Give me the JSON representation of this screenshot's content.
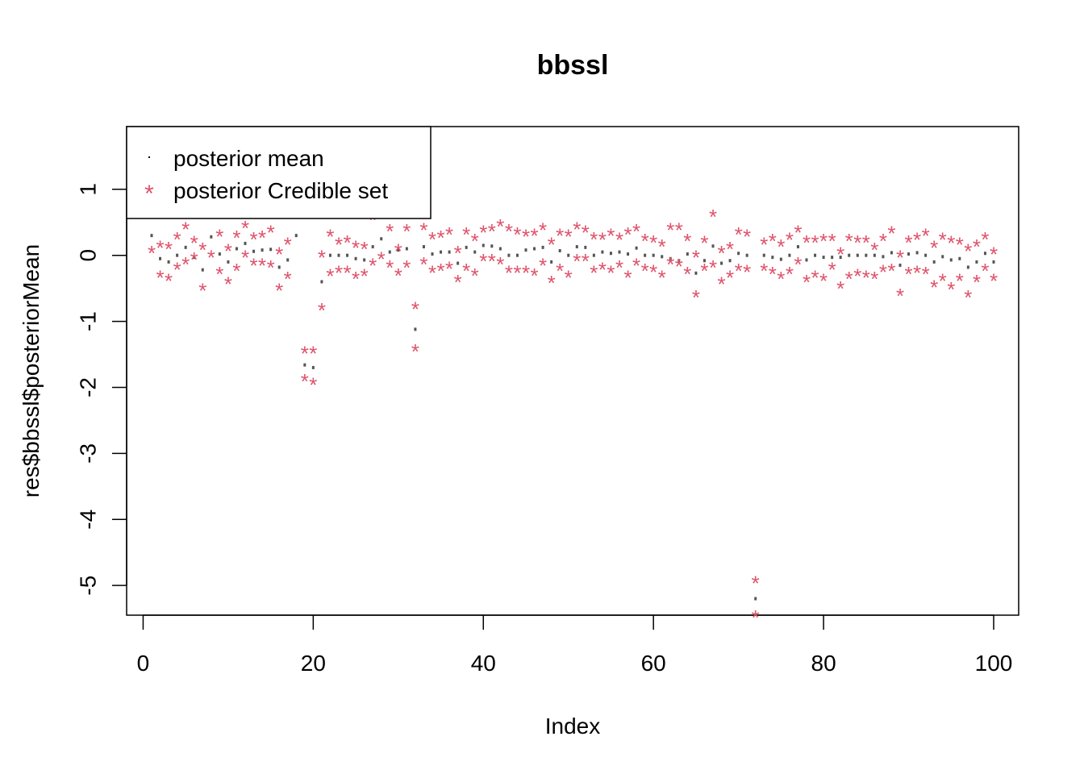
{
  "chart_data": {
    "type": "scatter",
    "title": "bbssl",
    "xlabel": "Index",
    "ylabel": "res$bbssl$posteriorMean",
    "xlim": [
      1,
      100
    ],
    "ylim": [
      -5.45,
      1.95
    ],
    "x_ticks": [
      0,
      20,
      40,
      60,
      80,
      100
    ],
    "y_ticks": [
      -5,
      -4,
      -3,
      -2,
      -1,
      0,
      1
    ],
    "legend_position": "top-left",
    "grid": false,
    "colors": {
      "mean": "#555555",
      "credible": "#DF536B",
      "axis": "#000000"
    },
    "legend": [
      {
        "label": "posterior mean",
        "marker": "dot",
        "color": "#000000"
      },
      {
        "label": "posterior Credible set",
        "marker": "star",
        "color": "#DF536B"
      }
    ],
    "series": [
      {
        "name": "posterior mean",
        "marker": "dot",
        "x": [
          1,
          2,
          3,
          4,
          5,
          6,
          7,
          8,
          9,
          10,
          11,
          12,
          13,
          14,
          15,
          16,
          17,
          18,
          19,
          20,
          21,
          22,
          23,
          24,
          25,
          26,
          27,
          28,
          29,
          30,
          31,
          32,
          33,
          34,
          35,
          36,
          37,
          38,
          39,
          40,
          41,
          42,
          43,
          44,
          45,
          46,
          47,
          48,
          49,
          50,
          51,
          52,
          53,
          54,
          55,
          56,
          57,
          58,
          59,
          60,
          61,
          62,
          63,
          64,
          65,
          66,
          67,
          68,
          69,
          70,
          71,
          72,
          73,
          74,
          75,
          76,
          77,
          78,
          79,
          80,
          81,
          82,
          83,
          84,
          85,
          86,
          87,
          88,
          89,
          90,
          91,
          92,
          93,
          94,
          95,
          96,
          97,
          98,
          99,
          100
        ],
        "y": [
          0.3,
          -0.05,
          -0.1,
          0.0,
          0.12,
          -0.03,
          -0.22,
          0.28,
          0.02,
          -0.1,
          0.1,
          0.18,
          0.06,
          0.08,
          0.09,
          -0.18,
          -0.07,
          0.3,
          -1.66,
          -1.7,
          -0.4,
          0.0,
          0.0,
          0.0,
          -0.05,
          -0.07,
          0.13,
          0.25,
          0.05,
          0.08,
          0.1,
          -1.12,
          0.13,
          0.02,
          0.05,
          0.05,
          -0.12,
          0.12,
          0.05,
          0.15,
          0.14,
          0.1,
          0.0,
          0.0,
          0.08,
          0.1,
          0.12,
          -0.1,
          0.07,
          0.0,
          0.13,
          0.12,
          0.0,
          0.05,
          0.03,
          0.05,
          0.02,
          0.11,
          0.0,
          0.0,
          -0.02,
          -0.05,
          -0.08,
          0.02,
          -0.27,
          -0.08,
          0.14,
          -0.12,
          -0.08,
          0.03,
          0.0,
          -5.2,
          0.0,
          -0.03,
          -0.06,
          0.0,
          0.13,
          -0.07,
          0.0,
          -0.03,
          -0.03,
          -0.03,
          0.0,
          0.0,
          0.0,
          0.0,
          -0.02,
          0.04,
          -0.15,
          0.02,
          0.04,
          0.0,
          -0.1,
          -0.02,
          -0.07,
          -0.05,
          -0.18,
          -0.1,
          0.03,
          -0.1
        ]
      },
      {
        "name": "posterior Credible set",
        "marker": "star",
        "x": [
          1,
          2,
          2,
          3,
          3,
          4,
          4,
          5,
          5,
          6,
          6,
          7,
          7,
          8,
          9,
          9,
          10,
          10,
          11,
          11,
          12,
          12,
          13,
          13,
          14,
          14,
          15,
          15,
          16,
          16,
          17,
          17,
          19,
          19,
          20,
          20,
          21,
          21,
          22,
          22,
          23,
          23,
          24,
          24,
          25,
          25,
          26,
          26,
          27,
          27,
          28,
          28,
          29,
          29,
          30,
          30,
          31,
          31,
          32,
          32,
          33,
          33,
          34,
          34,
          35,
          35,
          36,
          36,
          37,
          37,
          38,
          38,
          39,
          39,
          40,
          40,
          41,
          41,
          42,
          42,
          43,
          43,
          44,
          44,
          45,
          45,
          46,
          46,
          47,
          47,
          48,
          48,
          49,
          49,
          50,
          50,
          51,
          51,
          52,
          52,
          53,
          53,
          54,
          54,
          55,
          55,
          56,
          56,
          57,
          57,
          58,
          58,
          59,
          59,
          60,
          60,
          61,
          61,
          62,
          62,
          63,
          63,
          64,
          64,
          65,
          65,
          66,
          66,
          67,
          67,
          68,
          68,
          69,
          69,
          70,
          70,
          71,
          71,
          72,
          72,
          73,
          73,
          74,
          74,
          75,
          75,
          76,
          76,
          77,
          77,
          78,
          78,
          79,
          79,
          80,
          80,
          81,
          81,
          82,
          82,
          83,
          83,
          84,
          84,
          85,
          85,
          86,
          86,
          87,
          87,
          88,
          88,
          89,
          89,
          90,
          90,
          91,
          91,
          92,
          92,
          93,
          93,
          94,
          94,
          95,
          95,
          96,
          96,
          97,
          97,
          98,
          98,
          99,
          99,
          100,
          100
        ],
        "y": [
          0.07,
          0.15,
          -0.3,
          0.13,
          -0.35,
          0.28,
          -0.18,
          0.43,
          -0.1,
          0.22,
          -0.03,
          0.12,
          -0.5,
          0.0,
          0.32,
          -0.25,
          0.1,
          -0.4,
          0.3,
          -0.2,
          0.45,
          0.0,
          0.28,
          -0.12,
          0.3,
          -0.12,
          0.38,
          -0.15,
          0.05,
          -0.5,
          0.2,
          -0.32,
          -1.45,
          -1.87,
          -1.45,
          -1.93,
          0.0,
          -0.8,
          0.32,
          -0.28,
          0.2,
          -0.23,
          0.23,
          -0.23,
          0.15,
          -0.32,
          0.13,
          -0.28,
          0.57,
          -0.12,
          0.6,
          -0.02,
          0.4,
          -0.15,
          0.1,
          -0.27,
          0.4,
          -0.15,
          -0.78,
          -1.42,
          0.42,
          -0.1,
          0.28,
          -0.23,
          0.3,
          -0.2,
          0.35,
          -0.17,
          0.07,
          -0.37,
          0.35,
          -0.2,
          0.25,
          -0.27,
          0.38,
          -0.05,
          0.4,
          -0.05,
          0.47,
          -0.1,
          0.4,
          -0.23,
          0.35,
          -0.23,
          0.32,
          -0.23,
          0.33,
          -0.27,
          0.42,
          -0.12,
          0.2,
          -0.38,
          0.33,
          -0.2,
          0.32,
          -0.3,
          0.43,
          -0.05,
          0.38,
          -0.05,
          0.28,
          -0.23,
          0.27,
          -0.18,
          0.33,
          -0.23,
          0.27,
          -0.15,
          0.35,
          -0.3,
          0.4,
          -0.12,
          0.25,
          -0.2,
          0.23,
          -0.22,
          0.17,
          -0.3,
          0.42,
          -0.1,
          0.42,
          -0.13,
          0.25,
          -0.25,
          0.0,
          -0.6,
          0.22,
          -0.2,
          0.62,
          -0.15,
          0.07,
          -0.4,
          0.13,
          -0.3,
          0.35,
          -0.2,
          0.32,
          -0.22,
          -4.93,
          -5.45,
          0.2,
          -0.2,
          0.25,
          -0.25,
          0.17,
          -0.32,
          0.27,
          -0.25,
          0.38,
          -0.1,
          0.23,
          -0.37,
          0.23,
          -0.3,
          0.25,
          -0.35,
          0.25,
          -0.18,
          0.05,
          -0.47,
          0.25,
          -0.32,
          0.23,
          -0.28,
          0.23,
          -0.3,
          0.12,
          -0.32,
          0.25,
          -0.22,
          0.37,
          -0.2,
          0.0,
          -0.58,
          0.23,
          -0.25,
          0.27,
          -0.23,
          0.33,
          -0.25,
          0.15,
          -0.45,
          0.27,
          -0.35,
          0.22,
          -0.48,
          0.2,
          -0.35,
          0.1,
          -0.6,
          0.17,
          -0.37,
          0.28,
          -0.2,
          0.05,
          -0.35
        ]
      }
    ]
  }
}
